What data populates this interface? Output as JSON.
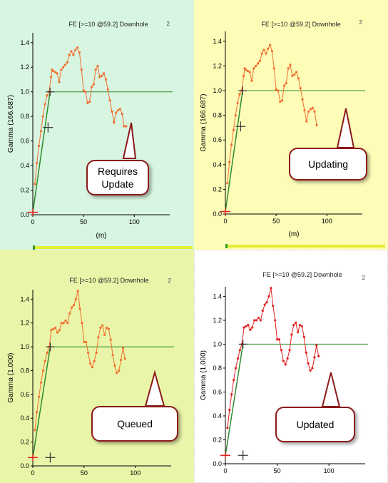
{
  "colors": {
    "requires_update_bg": "#d8f5e1",
    "updating_bg": "#fdfdb8",
    "queued_bg": "#e9f5a8",
    "updated_bg": "#ffffff",
    "curve_stale": "#f07030",
    "curve_updated": "#e02020",
    "baseline": "#2e8b2e",
    "callout_border": "#8b1a1a",
    "progress_bar": "#e4ee30"
  },
  "chart_data": [
    {
      "type": "line",
      "status": "Requires\nUpdate",
      "title": "FE [>=10 @59.2] Downhole",
      "corner_label": "2",
      "ylabel": "Gamma (166.687)",
      "xlabel": "(m)",
      "xlim": [
        0,
        135
      ],
      "ylim": [
        0,
        1.48
      ],
      "xticks": [
        0,
        50,
        100
      ],
      "yticks": [
        0.0,
        0.2,
        0.4,
        0.6,
        0.8,
        1.0,
        1.2,
        1.4
      ],
      "reference_line": 1.0,
      "cross_marker": [
        15,
        0.71
      ],
      "origin_marker": [
        0,
        0.02
      ],
      "fit_line": [
        [
          0,
          0.02
        ],
        [
          17,
          1.0
        ]
      ],
      "progress_value": 1.0,
      "series": [
        {
          "x": [
            2,
            4,
            6,
            8,
            10,
            12,
            14,
            16,
            18,
            19,
            20,
            22,
            24,
            26,
            28,
            30,
            32,
            34,
            36,
            38,
            40,
            42,
            44,
            46,
            48,
            50,
            52,
            54,
            56,
            58,
            60,
            62,
            64,
            66,
            68,
            70,
            72,
            74,
            76,
            78,
            80,
            82,
            84,
            86,
            88,
            90,
            92
          ],
          "y": [
            0.25,
            0.42,
            0.56,
            0.68,
            0.8,
            0.9,
            0.97,
            1.0,
            1.12,
            1.18,
            1.17,
            1.16,
            1.15,
            1.08,
            1.18,
            1.2,
            1.22,
            1.24,
            1.3,
            1.33,
            1.3,
            1.34,
            1.36,
            1.32,
            1.18,
            1.01,
            1.0,
            0.91,
            0.92,
            1.04,
            1.06,
            1.18,
            1.21,
            1.12,
            1.13,
            1.15,
            1.1,
            1.02,
            0.93,
            0.84,
            0.75,
            0.83,
            0.85,
            0.86,
            0.82,
            0.72,
            0.72
          ]
        }
      ]
    },
    {
      "type": "line",
      "status": "Updating",
      "title": "FE [>=10 @59.2] Downhole",
      "corner_label": "2",
      "ylabel": "Gamma (166.687)",
      "xlabel": "(m)",
      "xlim": [
        0,
        135
      ],
      "ylim": [
        0,
        1.48
      ],
      "xticks": [
        0,
        50,
        100
      ],
      "yticks": [
        0.0,
        0.2,
        0.4,
        0.6,
        0.8,
        1.0,
        1.2,
        1.4
      ],
      "reference_line": 1.0,
      "cross_marker": [
        15,
        0.71
      ],
      "origin_marker": [
        0,
        0.02
      ],
      "fit_line": [
        [
          0,
          0.02
        ],
        [
          17,
          1.0
        ]
      ],
      "progress_value": 1.0,
      "series": [
        {
          "x": [
            2,
            4,
            6,
            8,
            10,
            12,
            14,
            16,
            18,
            19,
            20,
            22,
            24,
            26,
            28,
            30,
            32,
            34,
            36,
            38,
            40,
            42,
            44,
            46,
            48,
            50,
            52,
            54,
            56,
            58,
            60,
            62,
            64,
            66,
            68,
            70,
            72,
            74,
            76,
            78,
            80,
            82,
            84,
            86,
            88,
            90
          ],
          "y": [
            0.25,
            0.42,
            0.56,
            0.68,
            0.8,
            0.9,
            0.97,
            1.0,
            1.12,
            1.18,
            1.17,
            1.16,
            1.15,
            1.08,
            1.18,
            1.2,
            1.22,
            1.24,
            1.3,
            1.33,
            1.3,
            1.34,
            1.37,
            1.32,
            1.18,
            1.01,
            1.0,
            0.91,
            0.92,
            1.04,
            1.06,
            1.18,
            1.21,
            1.12,
            1.13,
            1.15,
            1.1,
            1.02,
            0.93,
            0.84,
            0.75,
            0.83,
            0.85,
            0.86,
            0.83,
            0.72
          ]
        }
      ]
    },
    {
      "type": "line",
      "status": "Queued",
      "title": "FE [>=10 @59.2] Downhole",
      "corner_label": "2",
      "ylabel": "Gamma (1.000)",
      "xlabel": "",
      "xlim": [
        0,
        135
      ],
      "ylim": [
        0,
        1.48
      ],
      "xticks": [
        0,
        50,
        100
      ],
      "yticks": [
        0.0,
        0.2,
        0.4,
        0.6,
        0.8,
        1.0,
        1.2,
        1.4
      ],
      "reference_line": 1.0,
      "cross_marker": [
        17,
        0.07
      ],
      "origin_marker": [
        0,
        0.07
      ],
      "fit_line": [
        [
          0,
          0.07
        ],
        [
          17,
          1.0
        ]
      ],
      "series": [
        {
          "x": [
            2,
            4,
            6,
            8,
            10,
            12,
            14,
            16,
            18,
            20,
            22,
            24,
            26,
            28,
            30,
            32,
            34,
            36,
            38,
            40,
            42,
            44,
            46,
            48,
            50,
            52,
            54,
            56,
            58,
            60,
            62,
            64,
            66,
            68,
            70,
            72,
            74,
            76,
            78,
            80,
            82,
            84,
            86,
            88,
            90
          ],
          "y": [
            0.3,
            0.45,
            0.58,
            0.7,
            0.8,
            0.88,
            0.95,
            1.0,
            1.14,
            1.15,
            1.16,
            1.12,
            1.14,
            1.2,
            1.2,
            1.22,
            1.2,
            1.28,
            1.33,
            1.35,
            1.4,
            1.47,
            1.32,
            1.2,
            1.04,
            1.04,
            0.95,
            0.86,
            0.83,
            0.88,
            0.95,
            1.08,
            1.16,
            1.18,
            1.1,
            1.16,
            1.15,
            1.06,
            0.93,
            0.84,
            0.78,
            0.8,
            0.89,
            0.99,
            0.9
          ]
        }
      ]
    },
    {
      "type": "line",
      "status": "Updated",
      "title": "FE [>=10 @59.2] Downhole",
      "corner_label": "2",
      "ylabel": "Gamma (1.000)",
      "xlabel": "",
      "xlim": [
        0,
        135
      ],
      "ylim": [
        0,
        1.48
      ],
      "xticks": [
        0,
        50,
        100
      ],
      "yticks": [
        0.0,
        0.2,
        0.4,
        0.6,
        0.8,
        1.0,
        1.2,
        1.4
      ],
      "reference_line": 1.0,
      "cross_marker": [
        17,
        0.07
      ],
      "origin_marker": [
        0,
        0.07
      ],
      "fit_line": [
        [
          0,
          0.07
        ],
        [
          17,
          1.0
        ]
      ],
      "series": [
        {
          "x": [
            2,
            4,
            6,
            8,
            10,
            12,
            14,
            16,
            18,
            20,
            22,
            24,
            26,
            28,
            30,
            32,
            34,
            36,
            38,
            40,
            42,
            44,
            46,
            48,
            50,
            52,
            54,
            56,
            58,
            60,
            62,
            64,
            66,
            68,
            70,
            72,
            74,
            76,
            78,
            80,
            82,
            84,
            86,
            88,
            90
          ],
          "y": [
            0.3,
            0.45,
            0.58,
            0.7,
            0.8,
            0.88,
            0.95,
            1.0,
            1.14,
            1.15,
            1.16,
            1.12,
            1.14,
            1.2,
            1.2,
            1.22,
            1.2,
            1.28,
            1.33,
            1.35,
            1.4,
            1.47,
            1.32,
            1.2,
            1.04,
            1.04,
            0.95,
            0.86,
            0.83,
            0.88,
            0.95,
            1.08,
            1.16,
            1.18,
            1.1,
            1.16,
            1.15,
            1.06,
            0.93,
            0.84,
            0.78,
            0.8,
            0.89,
            0.99,
            0.9
          ]
        }
      ]
    }
  ]
}
